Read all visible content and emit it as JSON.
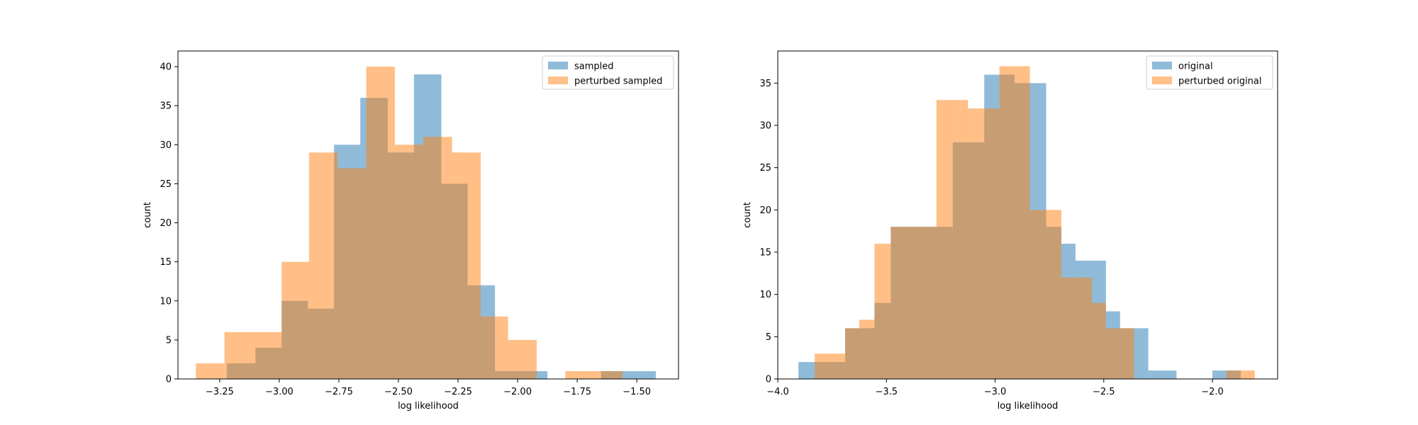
{
  "chart_data": [
    {
      "type": "histogram",
      "xlabel": "log likelihood",
      "ylabel": "count",
      "xlim": [
        -3.425,
        -1.325
      ],
      "ylim": [
        0,
        42
      ],
      "xticks": [
        {
          "value": -3.25,
          "label": "−3.25"
        },
        {
          "value": -3.0,
          "label": "−3.00"
        },
        {
          "value": -2.75,
          "label": "−2.75"
        },
        {
          "value": -2.5,
          "label": "−2.50"
        },
        {
          "value": -2.25,
          "label": "−2.25"
        },
        {
          "value": -2.0,
          "label": "−2.00"
        },
        {
          "value": -1.75,
          "label": "−1.75"
        },
        {
          "value": -1.5,
          "label": "−1.50"
        }
      ],
      "yticks": [
        0,
        5,
        10,
        15,
        20,
        25,
        30,
        35,
        40
      ],
      "legend_position": "top-right",
      "series": [
        {
          "name": "sampled",
          "color": "#1f77b4",
          "bins": [
            {
              "x0": -3.22,
              "x1": -3.1,
              "count": 2
            },
            {
              "x0": -3.1,
              "x1": -2.99,
              "count": 4
            },
            {
              "x0": -2.99,
              "x1": -2.88,
              "count": 10
            },
            {
              "x0": -2.88,
              "x1": -2.77,
              "count": 9
            },
            {
              "x0": -2.77,
              "x1": -2.66,
              "count": 30
            },
            {
              "x0": -2.66,
              "x1": -2.545,
              "count": 36
            },
            {
              "x0": -2.545,
              "x1": -2.435,
              "count": 29
            },
            {
              "x0": -2.435,
              "x1": -2.32,
              "count": 39
            },
            {
              "x0": -2.32,
              "x1": -2.21,
              "count": 25
            },
            {
              "x0": -2.21,
              "x1": -2.095,
              "count": 12
            },
            {
              "x0": -2.095,
              "x1": -1.985,
              "count": 1
            },
            {
              "x0": -1.985,
              "x1": -1.875,
              "count": 1
            },
            {
              "x0": -1.875,
              "x1": -1.76,
              "count": 0
            },
            {
              "x0": -1.76,
              "x1": -1.65,
              "count": 0
            },
            {
              "x0": -1.65,
              "x1": -1.53,
              "count": 1
            },
            {
              "x0": -1.53,
              "x1": -1.42,
              "count": 1
            }
          ]
        },
        {
          "name": "perturbed sampled",
          "color": "#ff7f0e",
          "bins": [
            {
              "x0": -3.35,
              "x1": -3.23,
              "count": 2
            },
            {
              "x0": -3.23,
              "x1": -3.11,
              "count": 6
            },
            {
              "x0": -3.11,
              "x1": -2.99,
              "count": 6
            },
            {
              "x0": -2.99,
              "x1": -2.875,
              "count": 15
            },
            {
              "x0": -2.875,
              "x1": -2.755,
              "count": 29
            },
            {
              "x0": -2.755,
              "x1": -2.635,
              "count": 27
            },
            {
              "x0": -2.635,
              "x1": -2.515,
              "count": 40
            },
            {
              "x0": -2.515,
              "x1": -2.395,
              "count": 30
            },
            {
              "x0": -2.395,
              "x1": -2.275,
              "count": 31
            },
            {
              "x0": -2.275,
              "x1": -2.155,
              "count": 29
            },
            {
              "x0": -2.155,
              "x1": -2.04,
              "count": 8
            },
            {
              "x0": -2.04,
              "x1": -1.92,
              "count": 5
            },
            {
              "x0": -1.92,
              "x1": -1.8,
              "count": 0
            },
            {
              "x0": -1.8,
              "x1": -1.68,
              "count": 1
            },
            {
              "x0": -1.68,
              "x1": -1.56,
              "count": 1
            }
          ]
        }
      ]
    },
    {
      "type": "histogram",
      "xlabel": "log likelihood",
      "ylabel": "count",
      "xlim": [
        -4.0,
        -1.7
      ],
      "ylim": [
        0,
        38.8
      ],
      "xticks": [
        {
          "value": -4.0,
          "label": "−4.0"
        },
        {
          "value": -3.5,
          "label": "−3.5"
        },
        {
          "value": -3.0,
          "label": "−3.0"
        },
        {
          "value": -2.5,
          "label": "−2.5"
        },
        {
          "value": -2.0,
          "label": "−2.0"
        }
      ],
      "yticks": [
        0,
        5,
        10,
        15,
        20,
        25,
        30,
        35
      ],
      "legend_position": "top-right",
      "series": [
        {
          "name": "original",
          "color": "#1f77b4",
          "bins": [
            {
              "x0": -3.905,
              "x1": -3.83,
              "count": 2
            },
            {
              "x0": -3.83,
              "x1": -3.76,
              "count": 2
            },
            {
              "x0": -3.76,
              "x1": -3.69,
              "count": 2
            },
            {
              "x0": -3.69,
              "x1": -3.625,
              "count": 6
            },
            {
              "x0": -3.625,
              "x1": -3.555,
              "count": 6
            },
            {
              "x0": -3.555,
              "x1": -3.48,
              "count": 9
            },
            {
              "x0": -3.48,
              "x1": -3.41,
              "count": 18
            },
            {
              "x0": -3.41,
              "x1": -3.34,
              "count": 18
            },
            {
              "x0": -3.34,
              "x1": -3.27,
              "count": 18
            },
            {
              "x0": -3.27,
              "x1": -3.195,
              "count": 18
            },
            {
              "x0": -3.195,
              "x1": -3.125,
              "count": 28
            },
            {
              "x0": -3.125,
              "x1": -3.05,
              "count": 28
            },
            {
              "x0": -3.05,
              "x1": -2.98,
              "count": 36
            },
            {
              "x0": -2.98,
              "x1": -2.91,
              "count": 36
            },
            {
              "x0": -2.91,
              "x1": -2.84,
              "count": 35
            },
            {
              "x0": -2.84,
              "x1": -2.765,
              "count": 35
            },
            {
              "x0": -2.765,
              "x1": -2.695,
              "count": 18
            },
            {
              "x0": -2.695,
              "x1": -2.63,
              "count": 16
            },
            {
              "x0": -2.63,
              "x1": -2.555,
              "count": 14
            },
            {
              "x0": -2.555,
              "x1": -2.49,
              "count": 14
            },
            {
              "x0": -2.49,
              "x1": -2.425,
              "count": 8
            },
            {
              "x0": -2.425,
              "x1": -2.36,
              "count": 6
            },
            {
              "x0": -2.36,
              "x1": -2.295,
              "count": 6
            },
            {
              "x0": -2.295,
              "x1": -2.23,
              "count": 1
            },
            {
              "x0": -2.23,
              "x1": -2.165,
              "count": 1
            },
            {
              "x0": -2.165,
              "x1": -2.0,
              "count": 0
            },
            {
              "x0": -2.0,
              "x1": -1.935,
              "count": 1
            },
            {
              "x0": -1.935,
              "x1": -1.87,
              "count": 1
            }
          ]
        },
        {
          "name": "perturbed original",
          "color": "#ff7f0e",
          "bins": [
            {
              "x0": -3.83,
              "x1": -3.76,
              "count": 3
            },
            {
              "x0": -3.76,
              "x1": -3.69,
              "count": 3
            },
            {
              "x0": -3.69,
              "x1": -3.625,
              "count": 6
            },
            {
              "x0": -3.625,
              "x1": -3.555,
              "count": 7
            },
            {
              "x0": -3.555,
              "x1": -3.48,
              "count": 16
            },
            {
              "x0": -3.48,
              "x1": -3.41,
              "count": 18
            },
            {
              "x0": -3.41,
              "x1": -3.34,
              "count": 18
            },
            {
              "x0": -3.34,
              "x1": -3.27,
              "count": 18
            },
            {
              "x0": -3.27,
              "x1": -3.195,
              "count": 33
            },
            {
              "x0": -3.195,
              "x1": -3.125,
              "count": 33
            },
            {
              "x0": -3.125,
              "x1": -3.05,
              "count": 32
            },
            {
              "x0": -3.05,
              "x1": -2.98,
              "count": 32
            },
            {
              "x0": -2.98,
              "x1": -2.91,
              "count": 37
            },
            {
              "x0": -2.91,
              "x1": -2.84,
              "count": 37
            },
            {
              "x0": -2.84,
              "x1": -2.765,
              "count": 20
            },
            {
              "x0": -2.765,
              "x1": -2.695,
              "count": 20
            },
            {
              "x0": -2.695,
              "x1": -2.63,
              "count": 12
            },
            {
              "x0": -2.63,
              "x1": -2.555,
              "count": 12
            },
            {
              "x0": -2.555,
              "x1": -2.49,
              "count": 9
            },
            {
              "x0": -2.49,
              "x1": -2.425,
              "count": 6
            },
            {
              "x0": -2.425,
              "x1": -2.36,
              "count": 6
            },
            {
              "x0": -2.36,
              "x1": -1.935,
              "count": 0
            },
            {
              "x0": -1.935,
              "x1": -1.87,
              "count": 1
            },
            {
              "x0": -1.87,
              "x1": -1.805,
              "count": 1
            }
          ]
        }
      ]
    }
  ]
}
